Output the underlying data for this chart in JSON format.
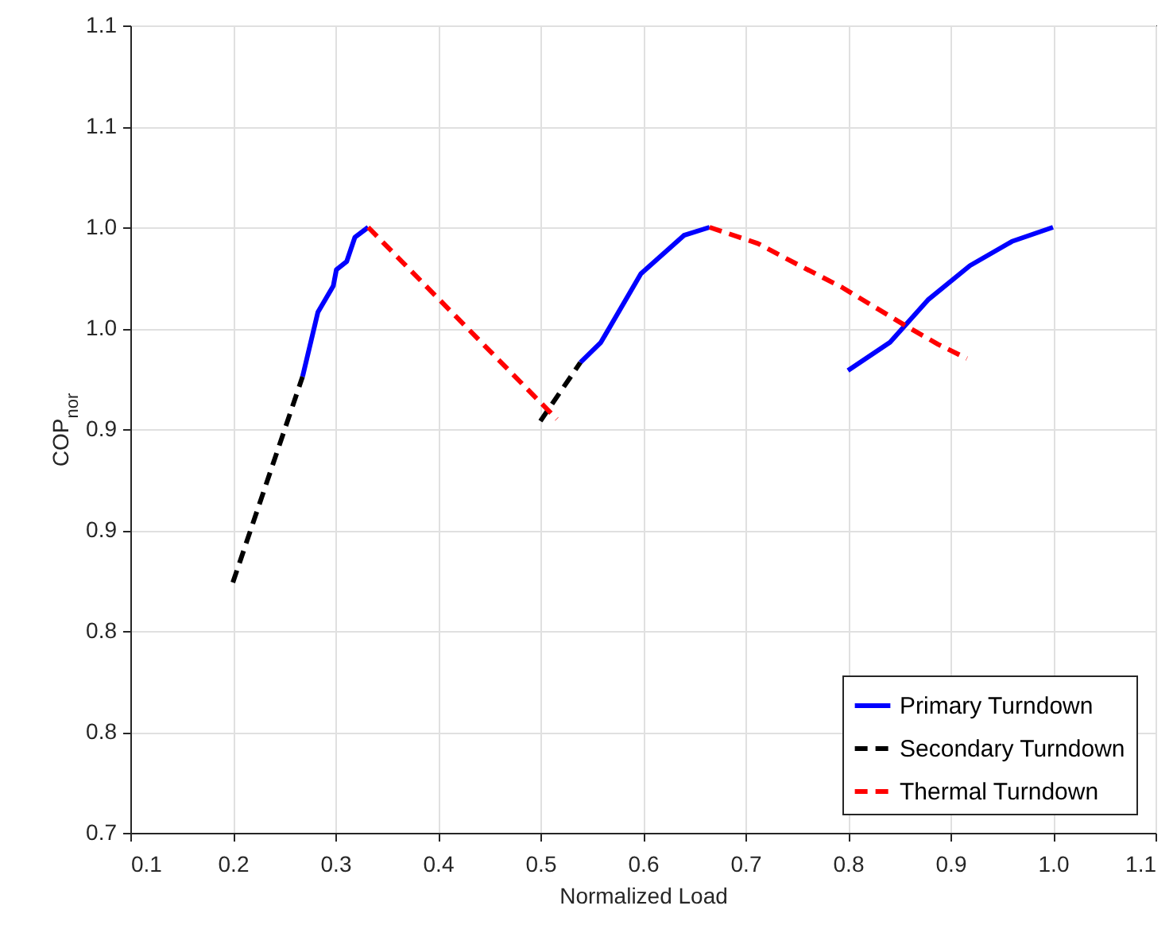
{
  "chart_data": {
    "type": "line",
    "xlabel": "Normalized Load",
    "ylabel": "COP$_{nor}$",
    "xlim": [
      0.1,
      1.1
    ],
    "xticks": [
      0.1,
      0.2,
      0.3,
      0.4,
      0.5,
      0.6,
      0.7,
      0.8,
      0.9,
      {
        "value": 1.0,
        "label": "1.0"
      },
      1.1
    ],
    "ylim": [
      0.7,
      1.1
    ],
    "yticks": [
      0.7,
      {
        "value": 0.75,
        "label": "0.8"
      },
      0.8,
      {
        "value": 0.85,
        "label": "0.9"
      },
      0.9,
      {
        "value": 0.95,
        "label": "1.0"
      },
      {
        "value": 1.0,
        "label": "1.0"
      },
      {
        "value": 1.05,
        "label": "1.1"
      },
      1.1
    ],
    "grid": true,
    "legend": "bottom right",
    "series": [
      {
        "name": "Primary Turndown",
        "color": "#0000ff",
        "line_style": "solid",
        "x": [
          0.268,
          0.283,
          0.298,
          0.301,
          0.311,
          0.319,
          0.332,
          null,
          0.539,
          0.559,
          0.598,
          0.64,
          0.665,
          null,
          0.8,
          0.841,
          0.878,
          0.919,
          0.96,
          1.0
        ],
        "values": [
          0.926,
          0.958,
          0.971,
          0.979,
          0.983,
          0.995,
          1.0,
          null,
          0.933,
          0.943,
          0.977,
          0.996,
          1.0,
          null,
          0.929,
          0.943,
          0.964,
          0.981,
          0.993,
          1.0
        ]
      },
      {
        "name": "Secondary Turndown",
        "color": "#000000",
        "line_style": "dashed",
        "x": [
          0.2,
          0.268,
          null,
          0.5,
          0.539
        ],
        "values": [
          0.824,
          0.926,
          null,
          0.904,
          0.933
        ]
      },
      {
        "name": "Thermal Turndown",
        "color": "#ff0000",
        "line_style": "dashed",
        "x": [
          0.332,
          0.516,
          null,
          0.665,
          0.712,
          0.753,
          0.795,
          0.857,
          0.888,
          0.916
        ],
        "values": [
          1.0,
          0.905,
          null,
          1.0,
          0.992,
          0.981,
          0.97,
          0.951,
          0.942,
          0.935
        ]
      }
    ]
  }
}
